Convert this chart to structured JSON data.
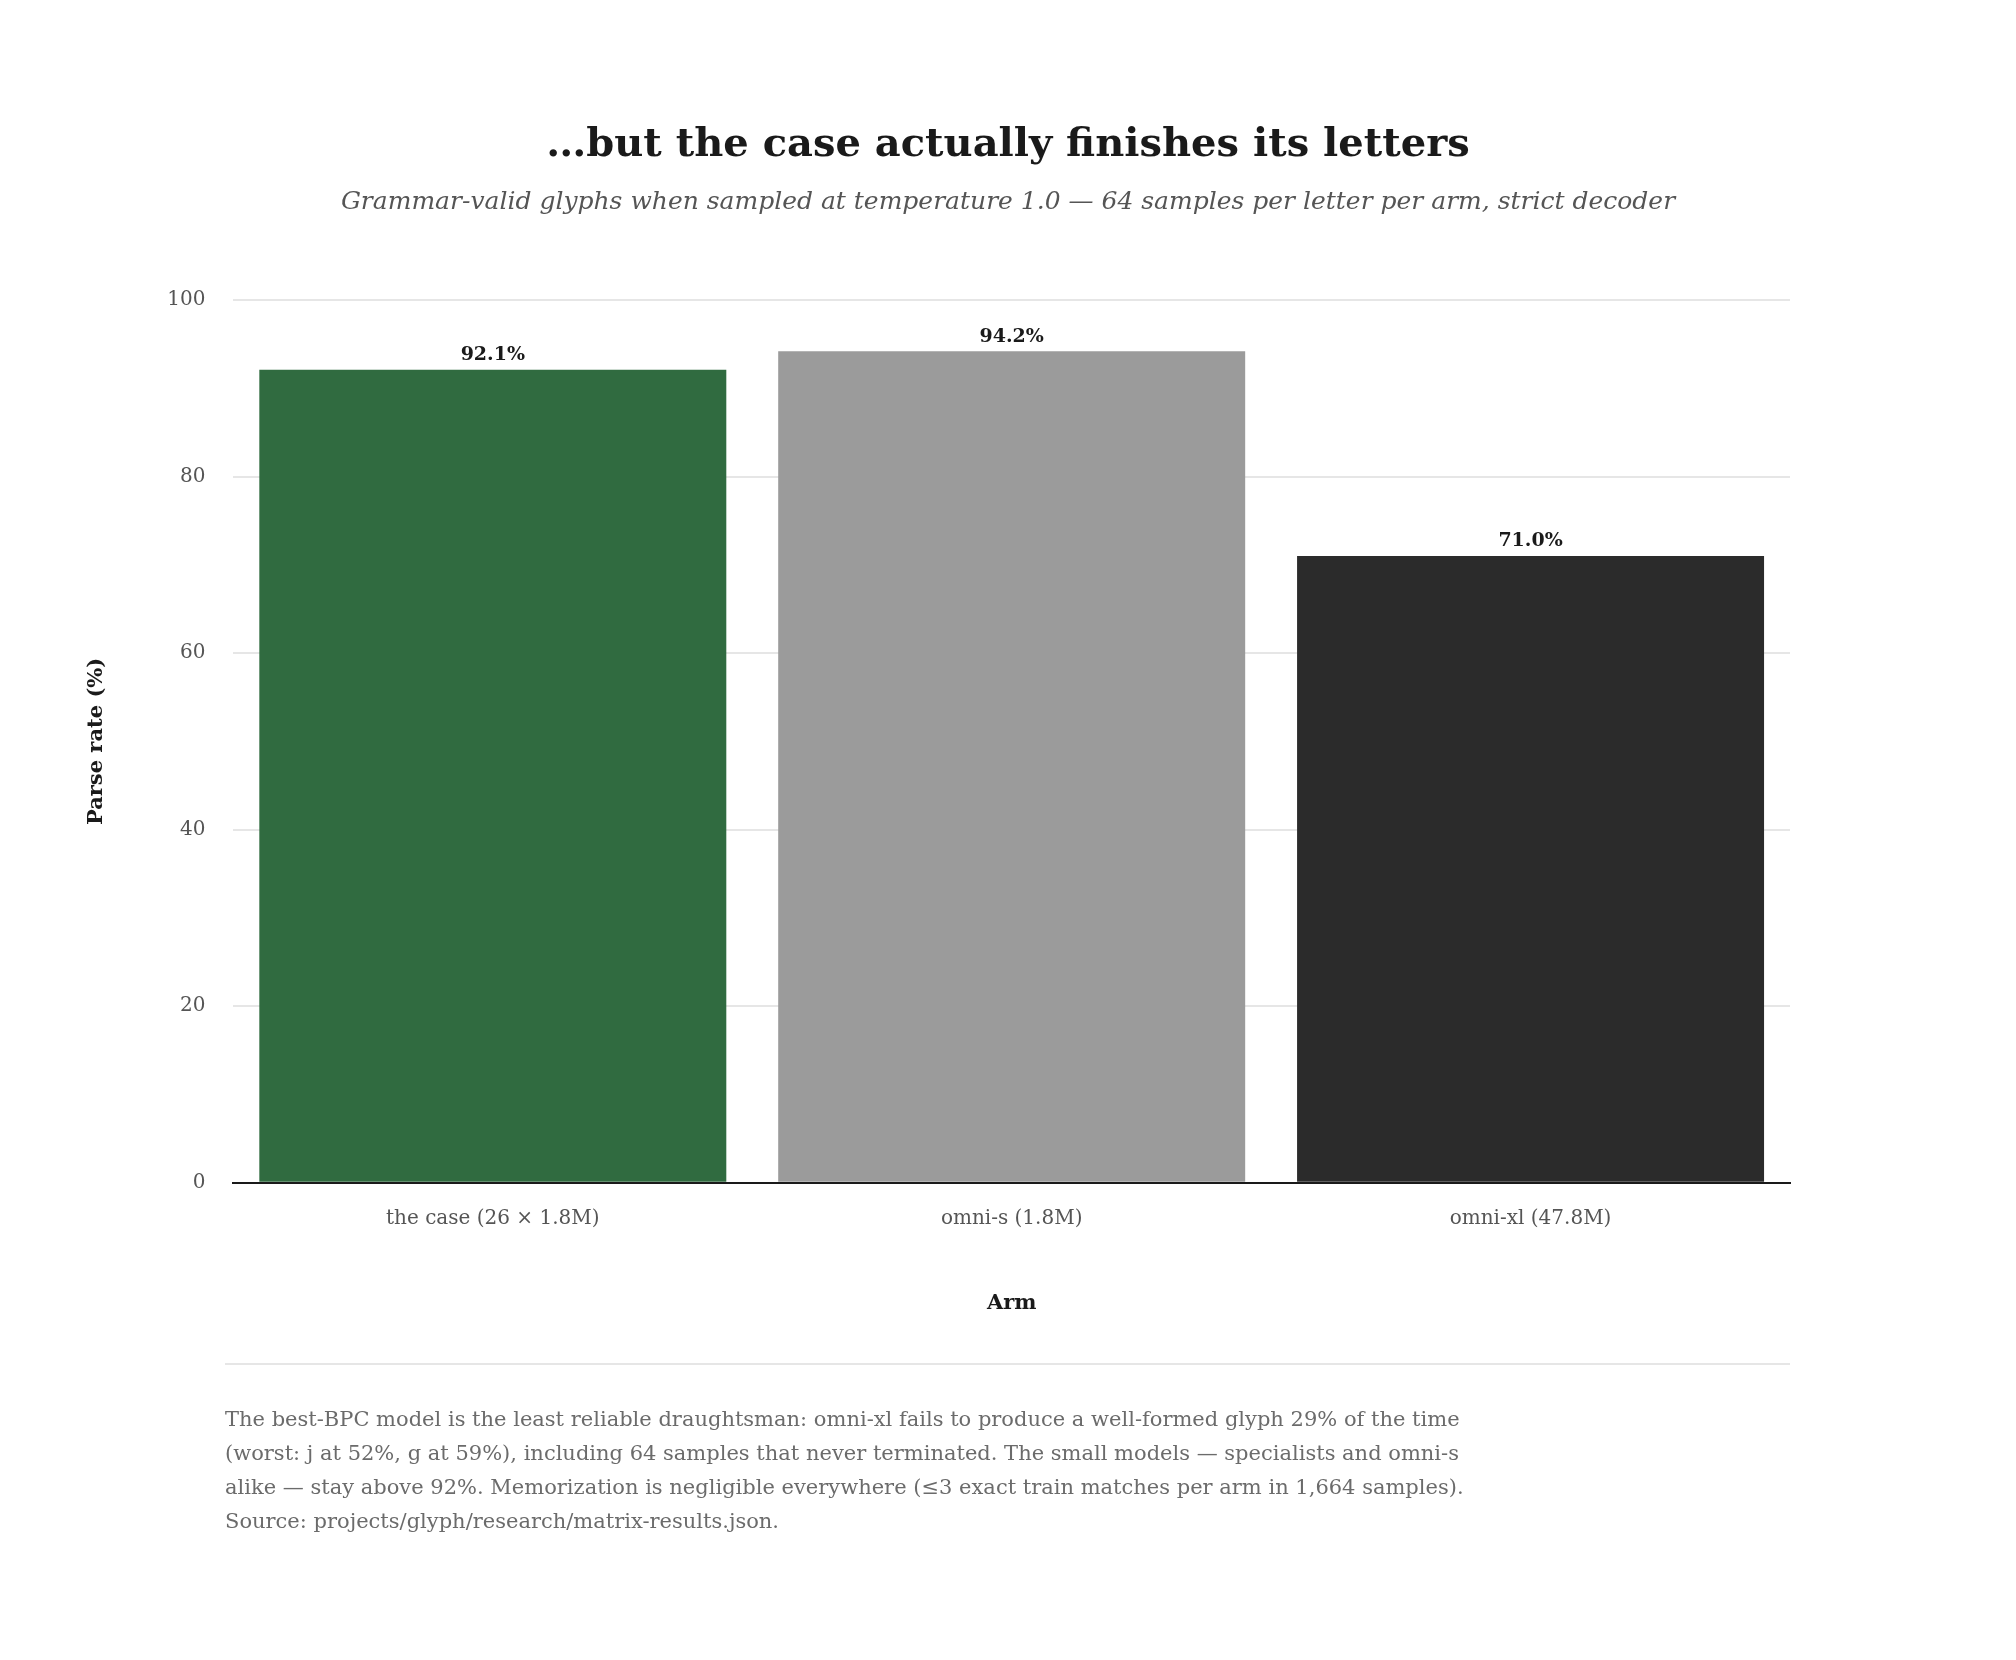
{
  "chart_data": {
    "type": "bar",
    "title": "…but the case actually finishes its letters",
    "subtitle": "Grammar-valid glyphs when sampled at temperature 1.0 — 64 samples per letter per arm, strict decoder",
    "xlabel": "Arm",
    "ylabel": "Parse rate (%)",
    "categories": [
      "the case (26 × 1.8M)",
      "omni-s (1.8M)",
      "omni-xl (47.8M)"
    ],
    "values": [
      92.1,
      94.2,
      71.0
    ],
    "colors": [
      "#306b40",
      "#9b9b9b",
      "#2b2b2b"
    ],
    "value_labels": [
      "92.1%",
      "94.2%",
      "71.0%"
    ],
    "ylim": [
      0,
      100
    ],
    "yticks": [
      0,
      20,
      40,
      60,
      80,
      100
    ],
    "grid": "y",
    "legend": false,
    "annotations": [
      "The best-BPC model is the least reliable draughtsman: omni-xl fails to produce a well-formed glyph 29% of the time (worst: j at 52%, g at 59%), including 64 samples that never terminated. The small models — specialists and omni-s alike — stay above 92%. Memorization is negligible everywhere (≤3 exact train matches per arm in 1,664 samples).",
      "Source: projects/glyph/research/matrix-results.json."
    ]
  }
}
